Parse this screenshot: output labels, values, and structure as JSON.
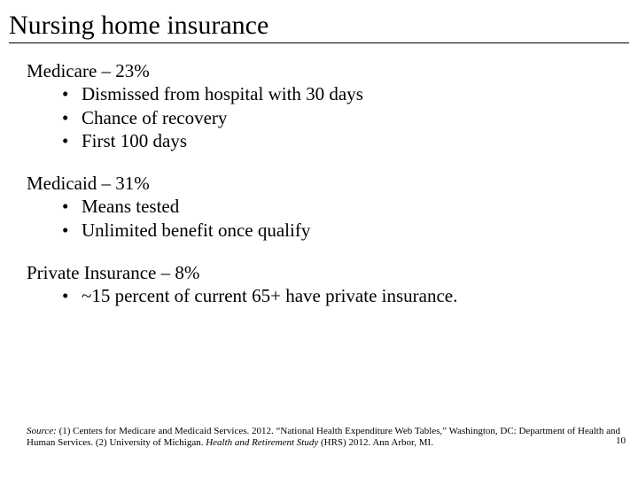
{
  "title": "Nursing home insurance",
  "sections": [
    {
      "label": "Medicare – 23%",
      "bullets": [
        "Dismissed from hospital with 30 days",
        "Chance of recovery",
        "First 100 days"
      ]
    },
    {
      "label": "Medicaid – 31%",
      "bullets": [
        "Means tested",
        "Unlimited benefit once qualify"
      ]
    },
    {
      "label": "Private Insurance – 8%",
      "bullets": [
        "~15 percent of current 65+ have private insurance."
      ]
    }
  ],
  "source": {
    "label": "Source:",
    "part1": " (1) Centers for Medicare and Medicaid Services. 2012. “National Health Expenditure Web Tables,” Washington, DC: Department of Health and Human Services. (2) University of Michigan. ",
    "work": "Health and Retirement Study",
    "part2": " (HRS) 2012. Ann Arbor, MI."
  },
  "page_number": "10"
}
